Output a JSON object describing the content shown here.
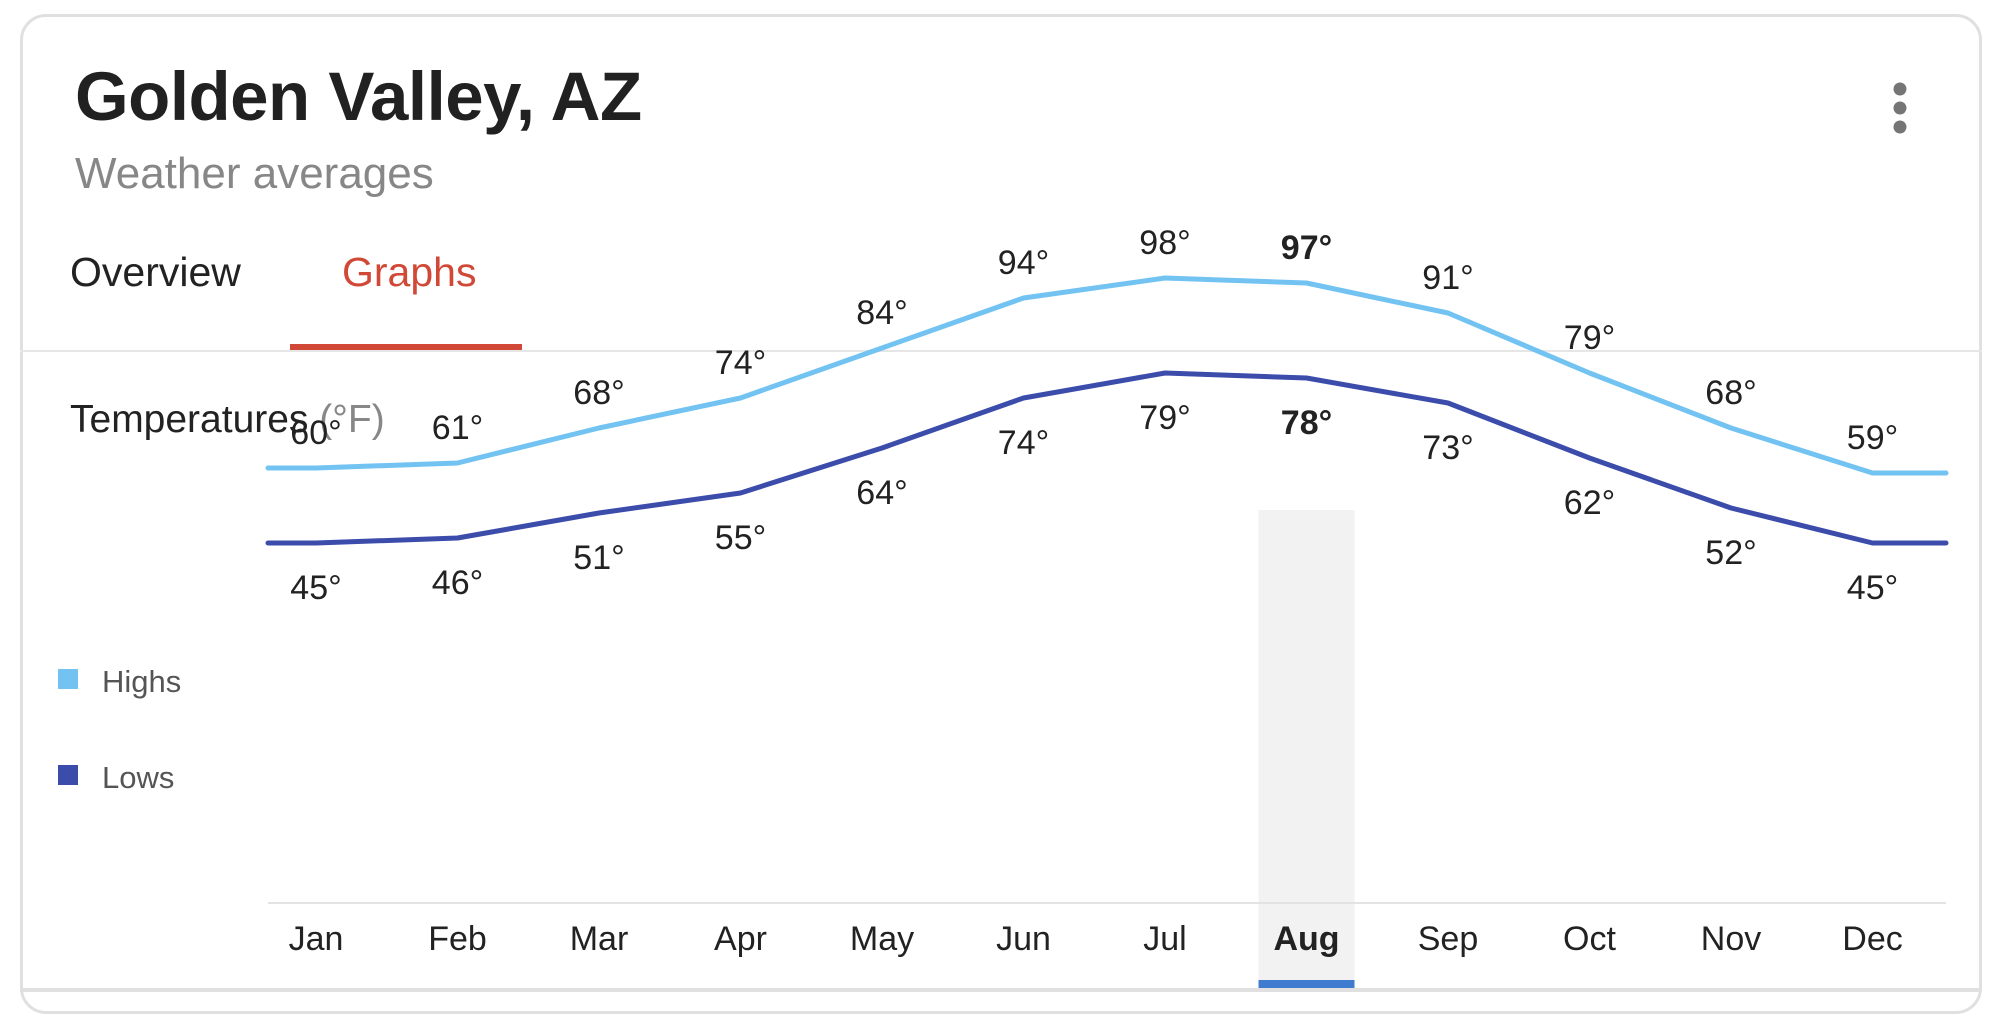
{
  "header": {
    "title": "Golden Valley, AZ",
    "subtitle": "Weather averages"
  },
  "menu": {
    "icon": "more-vert-icon"
  },
  "tabs": [
    {
      "label": "Overview",
      "selected": false
    },
    {
      "label": "Graphs",
      "selected": true
    }
  ],
  "section": {
    "title": "Temperatures",
    "unit": "(°F)"
  },
  "colors": {
    "highs": "#72c3f2",
    "lows": "#3b4cab",
    "selected_tab": "#d14836",
    "selected_month_bar": "#3f7bd1",
    "selected_month_band": "#f2f2f2"
  },
  "chart_data": {
    "type": "line",
    "categories": [
      "Jan",
      "Feb",
      "Mar",
      "Apr",
      "May",
      "Jun",
      "Jul",
      "Aug",
      "Sep",
      "Oct",
      "Nov",
      "Dec"
    ],
    "selected_category": "Aug",
    "series": [
      {
        "name": "Highs",
        "values": [
          60,
          61,
          68,
          74,
          84,
          94,
          98,
          97,
          91,
          79,
          68,
          59
        ],
        "labels": [
          "60°",
          "61°",
          "68°",
          "74°",
          "84°",
          "94°",
          "98°",
          "97°",
          "91°",
          "79°",
          "68°",
          "59°"
        ]
      },
      {
        "name": "Lows",
        "values": [
          45,
          46,
          51,
          55,
          64,
          74,
          79,
          78,
          73,
          62,
          52,
          45
        ],
        "labels": [
          "45°",
          "46°",
          "51°",
          "55°",
          "64°",
          "74°",
          "79°",
          "78°",
          "73°",
          "62°",
          "52°",
          "45°"
        ]
      }
    ],
    "legend": [
      {
        "name": "Highs"
      },
      {
        "name": "Lows"
      }
    ],
    "legend_position": "left",
    "grid": false
  }
}
